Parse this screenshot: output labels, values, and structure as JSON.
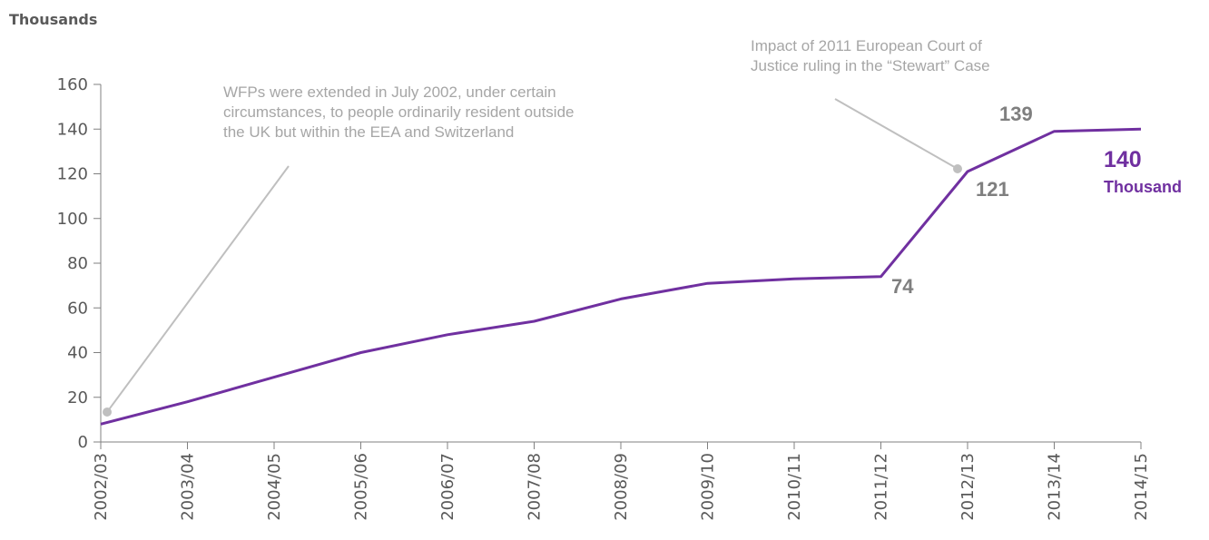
{
  "unit_label": "Thousands",
  "annotations": {
    "left": [
      "WFPs were extended in July 2002, under certain",
      "circumstances, to people ordinarily resident outside",
      "the UK but within the EEA and Switzerland"
    ],
    "right": [
      "Impact of 2011 European Court of",
      "Justice ruling in the “Stewart” Case"
    ]
  },
  "callouts": {
    "v2011": "74",
    "v2012": "121",
    "v2013": "139",
    "final_value": "140",
    "final_unit": "Thousand"
  },
  "colors": {
    "series": "#7030a0",
    "annotation": "#a6a6a6",
    "callout": "#7f7f7f"
  },
  "chart_data": {
    "type": "line",
    "title": "",
    "xlabel": "",
    "ylabel": "Thousands",
    "ylim": [
      0,
      160
    ],
    "yticks": [
      0,
      20,
      40,
      60,
      80,
      100,
      120,
      140,
      160
    ],
    "categories": [
      "2002/03",
      "2003/04",
      "2004/05",
      "2005/06",
      "2006/07",
      "2007/08",
      "2008/09",
      "2009/10",
      "2010/11",
      "2011/12",
      "2012/13",
      "2013/14",
      "2014/15"
    ],
    "series": [
      {
        "values": [
          8,
          18,
          29,
          40,
          48,
          54,
          64,
          71,
          73,
          74,
          121,
          139,
          140
        ]
      }
    ],
    "grid": false,
    "legend": "none"
  }
}
